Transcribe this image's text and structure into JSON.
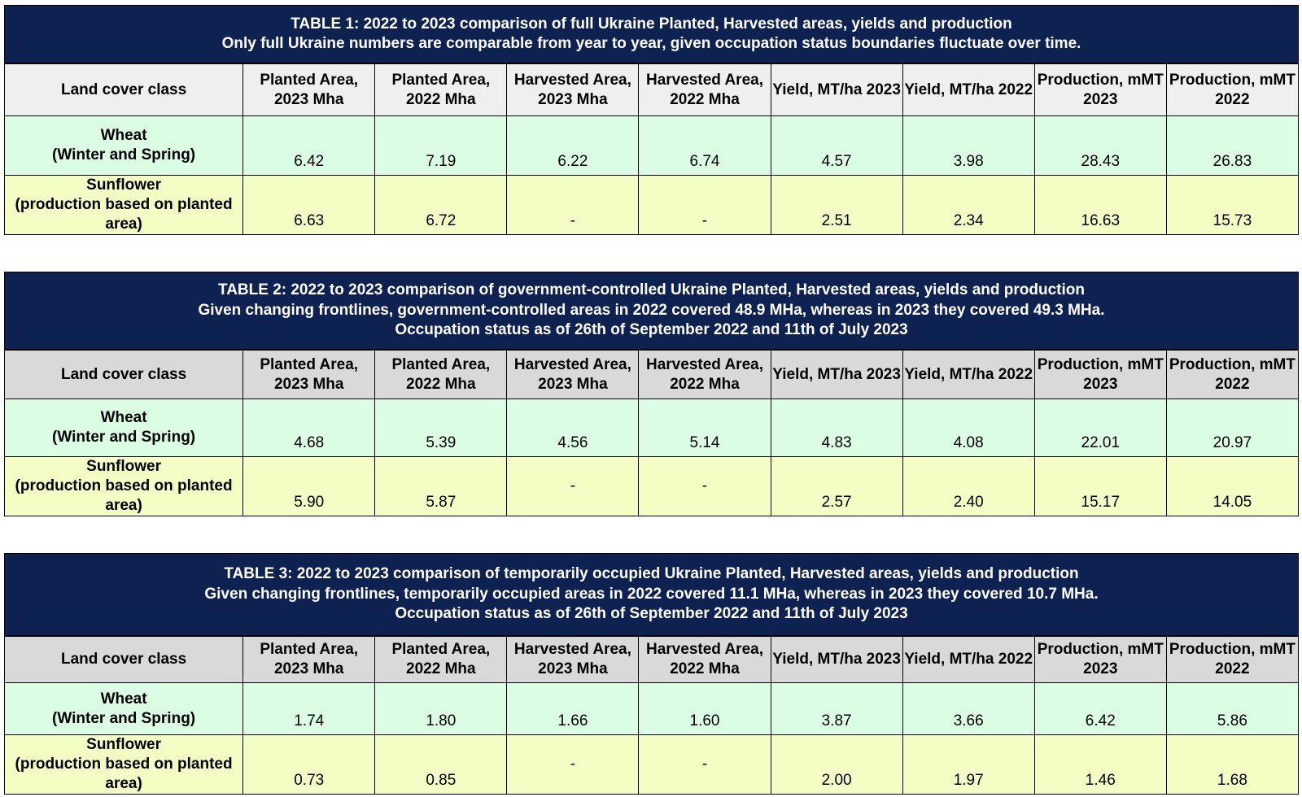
{
  "column_headers": [
    "Land cover class",
    "Planted Area, 2023 Mha",
    "Planted Area, 2022 Mha",
    "Harvested Area, 2023 Mha",
    "Harvested Area, 2022 Mha",
    "Yield, MT/ha 2023",
    "Yield, MT/ha 2022",
    "Production, mMT 2023",
    "Production, mMT 2022"
  ],
  "tables": [
    {
      "title_lines": [
        "TABLE 1: 2022 to 2023 comparison of full Ukraine Planted, Harvested areas,  yields and production",
        "Only full Ukraine numbers are comparable from year to year, given occupation status boundaries fluctuate over time."
      ],
      "rows": [
        {
          "label_lines": [
            "Wheat",
            "(Winter and Spring)"
          ],
          "values": [
            "6.42",
            "7.19",
            "6.22",
            "6.74",
            "4.57",
            "3.98",
            "28.43",
            "26.83"
          ]
        },
        {
          "label_lines": [
            "Sunflower",
            "(production based on planted",
            "area)"
          ],
          "values": [
            "6.63",
            "6.72",
            "-",
            "-",
            "2.51",
            "2.34",
            "16.63",
            "15.73"
          ]
        }
      ]
    },
    {
      "title_lines": [
        "TABLE 2: 2022 to 2023 comparison of government-controlled  Ukraine Planted, Harvested areas,  yields and production",
        "Given changing frontlines, government-controlled areas in 2022 covered 48.9 MHa, whereas in 2023 they covered 49.3 MHa.",
        "Occupation status as of 26th of September 2022 and 11th of July 2023"
      ],
      "rows": [
        {
          "label_lines": [
            "Wheat",
            "(Winter and Spring)"
          ],
          "values": [
            "4.68",
            "5.39",
            "4.56",
            "5.14",
            "4.83",
            "4.08",
            "22.01",
            "20.97"
          ]
        },
        {
          "label_lines": [
            "Sunflower",
            "(production based on planted",
            "area)"
          ],
          "values": [
            "5.90",
            "5.87",
            "-",
            "-",
            "2.57",
            "2.40",
            "15.17",
            "14.05"
          ]
        }
      ]
    },
    {
      "title_lines": [
        "TABLE 3: 2022 to 2023 comparison of temporarily occupied Ukraine Planted, Harvested areas,  yields and production",
        "Given changing frontlines, temporarily occupied areas in 2022 covered 11.1 MHa, whereas in 2023 they covered 10.7 MHa.",
        "Occupation status as of 26th of September 2022 and 11th of July 2023"
      ],
      "rows": [
        {
          "label_lines": [
            "Wheat",
            "(Winter and Spring)"
          ],
          "values": [
            "1.74",
            "1.80",
            "1.66",
            "1.60",
            "3.87",
            "3.66",
            "6.42",
            "5.86"
          ]
        },
        {
          "label_lines": [
            "Sunflower",
            "(production based on planted",
            "area)"
          ],
          "values": [
            "0.73",
            "0.85",
            "-",
            "-",
            "2.00",
            "1.97",
            "1.46",
            "1.68"
          ]
        }
      ]
    }
  ],
  "colors": {
    "header_bar": "#0e2251",
    "wheat_row": "#dbfde4",
    "sunflower_row": "#f4fec4",
    "column_header": "#d9d9d9"
  }
}
